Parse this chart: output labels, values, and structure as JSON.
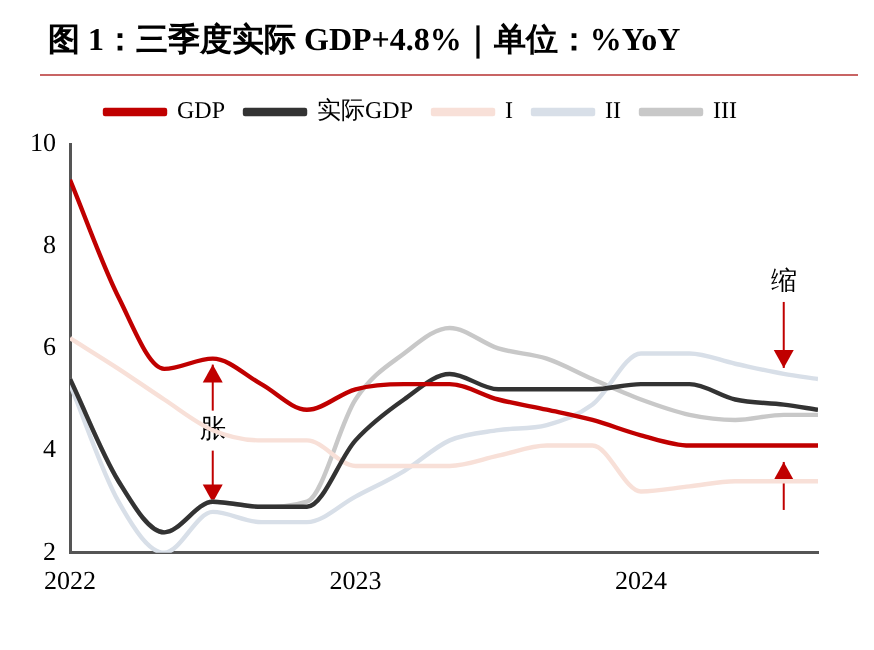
{
  "chart_data": {
    "type": "line",
    "title": "图 1：三季度实际 GDP+4.8%｜单位：%YoY",
    "x": [
      2022,
      2022.17,
      2022.33,
      2022.5,
      2022.67,
      2022.83,
      2023,
      2023.17,
      2023.33,
      2023.5,
      2023.67,
      2023.83,
      2024,
      2024.17,
      2024.33,
      2024.5,
      2024.62
    ],
    "series": [
      {
        "name": "GDP",
        "color": "#c00000",
        "values": [
          9.3,
          7.0,
          5.6,
          5.8,
          5.3,
          4.8,
          5.2,
          5.3,
          5.3,
          5.0,
          4.8,
          4.6,
          4.3,
          4.1,
          4.1,
          4.1,
          4.1
        ]
      },
      {
        "name": "实际GDP",
        "color": "#333333",
        "values": [
          5.4,
          3.4,
          2.4,
          3.0,
          2.9,
          2.9,
          4.2,
          5.0,
          5.5,
          5.2,
          5.2,
          5.2,
          5.3,
          5.3,
          5.0,
          4.9,
          4.8
        ]
      },
      {
        "name": "I",
        "color": "#f8e0d8",
        "values": [
          6.2,
          5.6,
          5.0,
          4.4,
          4.2,
          4.2,
          3.7,
          3.7,
          3.7,
          3.9,
          4.1,
          4.1,
          3.2,
          3.3,
          3.4,
          3.4,
          3.4
        ]
      },
      {
        "name": "II",
        "color": "#d8dfe8",
        "values": [
          5.3,
          3.0,
          2.0,
          2.8,
          2.6,
          2.6,
          3.1,
          3.6,
          4.2,
          4.4,
          4.5,
          4.9,
          5.9,
          5.9,
          5.7,
          5.5,
          5.4
        ]
      },
      {
        "name": "III",
        "color": "#c8c8c8",
        "values": [
          5.4,
          3.4,
          2.4,
          3.0,
          2.9,
          3.0,
          5.0,
          5.9,
          6.4,
          6.0,
          5.8,
          5.4,
          5.0,
          4.7,
          4.6,
          4.7,
          4.7
        ]
      }
    ],
    "annotations": [
      {
        "text": "胀",
        "x": 2022.5,
        "y": 5.8
      },
      {
        "text": "缩",
        "x": 2024.5,
        "y": 5.5
      }
    ],
    "xlim": [
      2022,
      2024.62
    ],
    "xticks": [
      2022,
      2023,
      2024
    ],
    "ylim": [
      2,
      10
    ],
    "yticks": [
      2,
      4,
      6,
      8,
      10
    ],
    "grid": false,
    "legend": "top",
    "marker": "none",
    "line_style": "solid"
  }
}
